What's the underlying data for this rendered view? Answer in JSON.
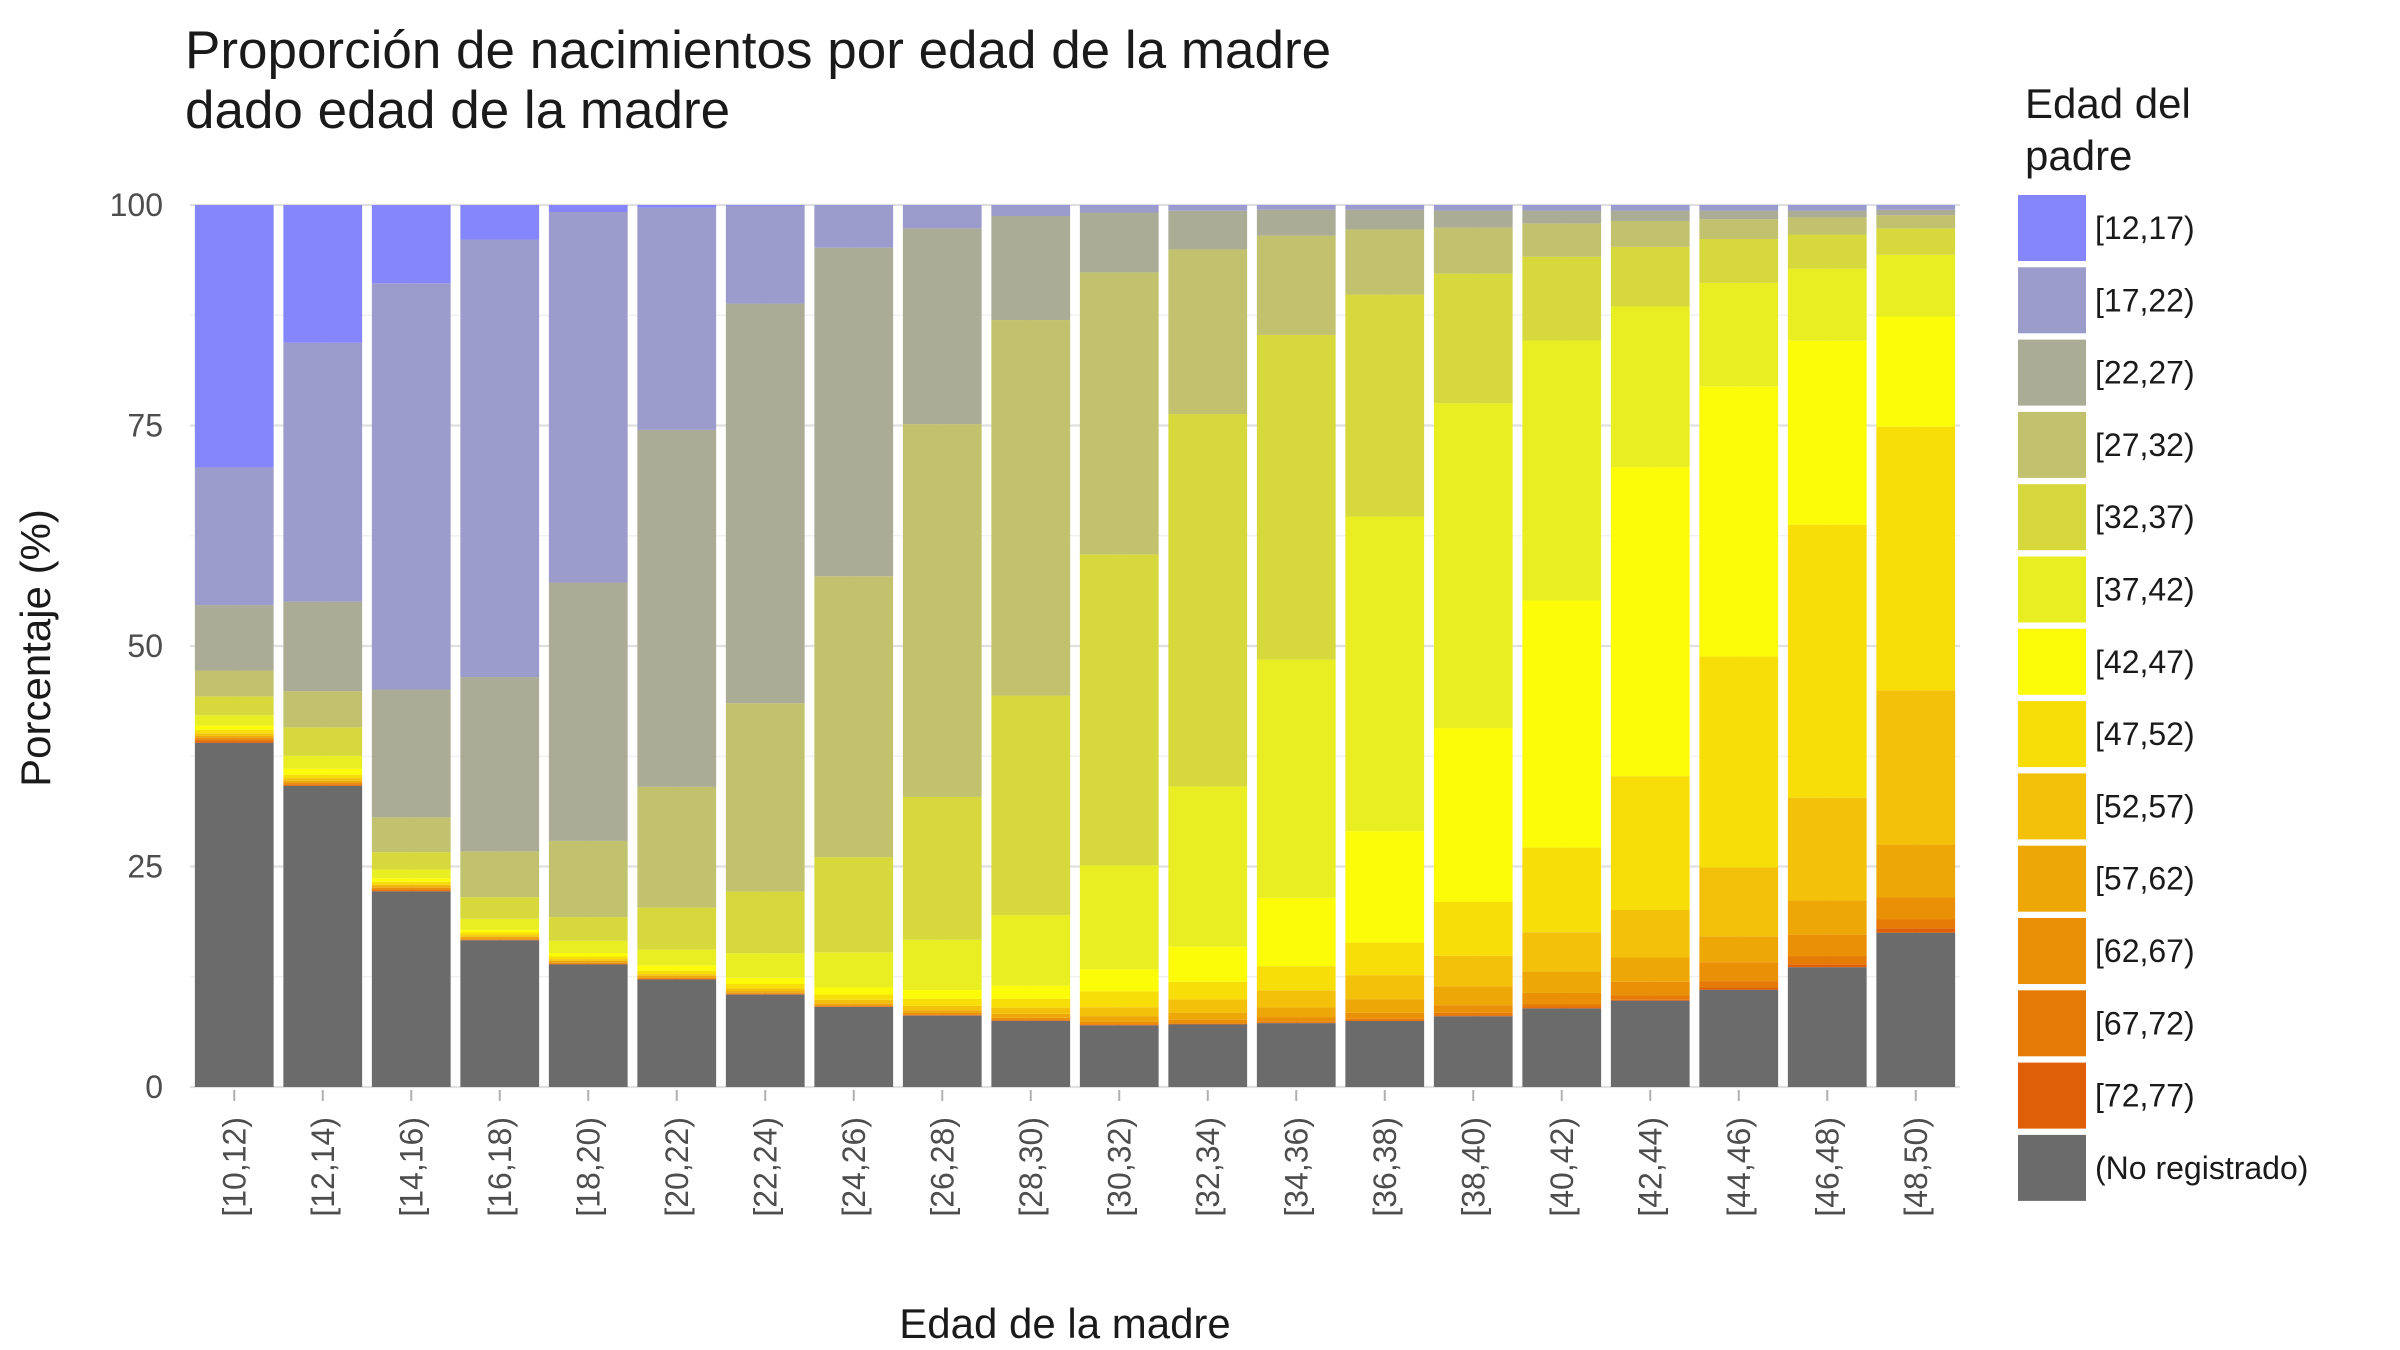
{
  "chart_data": {
    "type": "bar",
    "stacked": true,
    "title": [
      "Proporción de nacimientos por edad de la madre",
      "dado edad de la madre"
    ],
    "xlabel": "Edad de la madre",
    "ylabel": "Porcentaje (%)",
    "ylim": [
      0,
      100
    ],
    "yticks": [
      0,
      25,
      50,
      75,
      100
    ],
    "grid": true,
    "legend_title": [
      "Edad del",
      "padre"
    ],
    "legend_position": "right",
    "categories": [
      "[10,12)",
      "[12,14)",
      "[14,16)",
      "[16,18)",
      "[18,20)",
      "[20,22)",
      "[22,24)",
      "[24,26)",
      "[26,28)",
      "[28,30)",
      "[30,32)",
      "[32,34)",
      "[34,36)",
      "[36,38)",
      "[38,40)",
      "[40,42)",
      "[42,44)",
      "[44,46)",
      "[46,48)",
      "[48,50)"
    ],
    "series": [
      {
        "name": "(No registrado)",
        "color": "#6b6b6b",
        "values": [
          40,
          35,
          22.5,
          17,
          14,
          12.3,
          10.5,
          9.1,
          8.1,
          7.5,
          7.0,
          7.1,
          7.4,
          7.7,
          8.3,
          9.2,
          10.0,
          11.3,
          14.0,
          17.5
        ]
      },
      {
        "name": "[72,77)",
        "color": "#de5f07",
        "values": [
          0.2,
          0.1,
          0.1,
          0.05,
          0.05,
          0.05,
          0.05,
          0.05,
          0.05,
          0.05,
          0.05,
          0.05,
          0.05,
          0.05,
          0.1,
          0.1,
          0.1,
          0.2,
          0.3,
          0.5
        ]
      },
      {
        "name": "[67,72)",
        "color": "#e57a06",
        "values": [
          0.2,
          0.1,
          0.1,
          0.05,
          0.05,
          0.05,
          0.05,
          0.05,
          0.1,
          0.1,
          0.1,
          0.1,
          0.15,
          0.2,
          0.3,
          0.4,
          0.5,
          0.8,
          1.0,
          1.0
        ]
      },
      {
        "name": "[62,67)",
        "color": "#ea9006",
        "values": [
          0.2,
          0.2,
          0.2,
          0.1,
          0.1,
          0.1,
          0.1,
          0.1,
          0.15,
          0.2,
          0.3,
          0.4,
          0.5,
          0.7,
          0.9,
          1.3,
          1.6,
          2.2,
          2.5,
          2.5
        ]
      },
      {
        "name": "[57,62)",
        "color": "#eda808",
        "values": [
          0.2,
          0.2,
          0.2,
          0.2,
          0.2,
          0.2,
          0.2,
          0.2,
          0.3,
          0.45,
          0.6,
          0.8,
          1.1,
          1.6,
          2.2,
          2.5,
          2.8,
          3.0,
          4.0,
          6.0
        ]
      },
      {
        "name": "[52,57)",
        "color": "#f3c10a",
        "values": [
          0.3,
          0.3,
          0.2,
          0.2,
          0.2,
          0.2,
          0.3,
          0.4,
          0.5,
          0.7,
          1.0,
          1.5,
          2.0,
          2.8,
          3.6,
          4.6,
          5.5,
          8.0,
          12.0,
          17.5
        ]
      },
      {
        "name": "[47,52)",
        "color": "#f7de08",
        "values": [
          0.4,
          0.4,
          0.3,
          0.3,
          0.3,
          0.4,
          0.5,
          0.6,
          0.8,
          1.0,
          1.8,
          2.0,
          2.8,
          3.8,
          6.3,
          9.9,
          15.5,
          24.5,
          31.9,
          29.9
        ]
      },
      {
        "name": "[42,47)",
        "color": "#fcfc08",
        "values": [
          0.5,
          0.7,
          0.4,
          0.3,
          0.4,
          0.6,
          0.7,
          0.8,
          1.0,
          1.5,
          2.5,
          4.0,
          7.9,
          13.0,
          20.4,
          28.9,
          35.8,
          31.4,
          21.5,
          12.5
        ]
      },
      {
        "name": "[37,42)",
        "color": "#e9ee22",
        "values": [
          1.2,
          1.5,
          1.0,
          1.3,
          1.4,
          1.8,
          2.8,
          4.0,
          5.7,
          8.0,
          11.8,
          18.2,
          27.6,
          36.7,
          38.1,
          30.4,
          18.6,
          12.0,
          8.4,
          7.0
        ]
      },
      {
        "name": "[32,37)",
        "color": "#d6d83c",
        "values": [
          2.2,
          3.3,
          2.0,
          2.5,
          2.7,
          4.8,
          7.0,
          10.8,
          16.2,
          24.9,
          35.3,
          42.3,
          37.6,
          25.9,
          15.2,
          9.8,
          6.9,
          5.1,
          4.0,
          3.0
        ]
      },
      {
        "name": "[27,32)",
        "color": "#c2c26e",
        "values": [
          3.0,
          4.2,
          4.0,
          5.3,
          8.7,
          13.8,
          21.4,
          31.9,
          42.3,
          42.6,
          32.0,
          18.7,
          11.5,
          7.6,
          5.4,
          3.9,
          3.0,
          2.3,
          2.0,
          1.5
        ]
      },
      {
        "name": "[22,27)",
        "color": "#aaac96",
        "values": [
          7.6,
          10.4,
          14.7,
          20.2,
          29.5,
          40.8,
          45.4,
          37.3,
          22.2,
          11.8,
          6.8,
          4.4,
          3.0,
          2.3,
          2.0,
          1.5,
          1.2,
          1.0,
          0.8,
          0.6
        ]
      },
      {
        "name": "[17,22)",
        "color": "#9b9bcc",
        "values": [
          16.0,
          30.1,
          46.7,
          50.7,
          42.3,
          25.4,
          11.1,
          4.8,
          2.6,
          1.2,
          0.8,
          0.6,
          0.5,
          0.5,
          0.6,
          0.6,
          0.6,
          0.6,
          0.6,
          0.5
        ]
      },
      {
        "name": "[12,17)",
        "color": "#8686fc",
        "values": [
          30.5,
          16.0,
          9.0,
          4.0,
          0.8,
          0.3,
          0.1,
          0.05,
          0.05,
          0.05,
          0.05,
          0.05,
          0.05,
          0.05,
          0.05,
          0.05,
          0.05,
          0.05,
          0.05,
          0.05
        ]
      }
    ],
    "legend_order": [
      "[12,17)",
      "[17,22)",
      "[22,27)",
      "[27,32)",
      "[32,37)",
      "[37,42)",
      "[42,47)",
      "[47,52)",
      "[52,57)",
      "[57,62)",
      "[62,67)",
      "[67,72)",
      "[72,77)",
      "(No registrado)"
    ]
  }
}
